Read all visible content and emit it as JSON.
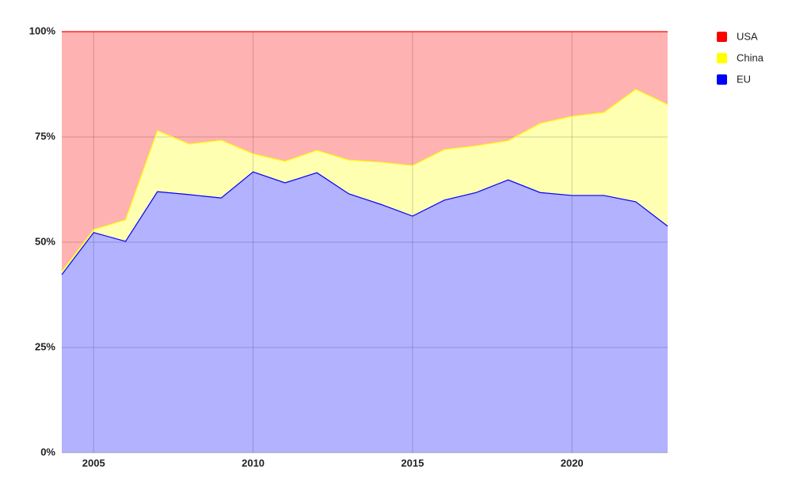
{
  "chart_data": {
    "type": "stacked_area",
    "x": [
      2004,
      2005,
      2006,
      2007,
      2008,
      2009,
      2010,
      2011,
      2012,
      2013,
      2014,
      2015,
      2016,
      2017,
      2018,
      2019,
      2020,
      2021,
      2022,
      2023
    ],
    "series": [
      {
        "name": "EU",
        "color": "#0000ff",
        "values": [
          42.3,
          52.3,
          50.2,
          62,
          61.3,
          60.5,
          66.7,
          64.1,
          66.5,
          61.5,
          59,
          56.2,
          60,
          61.8,
          64.8,
          61.8,
          61.1,
          61.1,
          59.6,
          53.8
        ]
      },
      {
        "name": "China",
        "color": "#ffff00",
        "values": [
          0.7,
          0.7,
          5.1,
          14.5,
          12,
          13.7,
          4.3,
          5.1,
          5.3,
          8,
          10,
          12,
          12,
          11.1,
          9.3,
          16.4,
          18.8,
          19.7,
          26.7,
          28.9
        ]
      },
      {
        "name": "USA",
        "color": "#ff0000",
        "values": [
          57,
          47,
          44.7,
          23.5,
          26.7,
          25.8,
          29,
          30.8,
          28.2,
          30.5,
          31,
          31.8,
          28,
          27.1,
          25.9,
          21.8,
          20.1,
          19.2,
          13.7,
          17.3
        ]
      }
    ],
    "xlim": [
      2004,
      2023
    ],
    "xticks": [
      2005,
      2010,
      2015,
      2020
    ],
    "ylim": [
      0,
      100
    ],
    "yticks": [
      {
        "value": 0,
        "label": "0%"
      },
      {
        "value": 25,
        "label": "25%"
      },
      {
        "value": 50,
        "label": "50%"
      },
      {
        "value": 75,
        "label": "75%"
      },
      {
        "value": 100,
        "label": "100%"
      }
    ],
    "grid": true,
    "legend": "right"
  }
}
